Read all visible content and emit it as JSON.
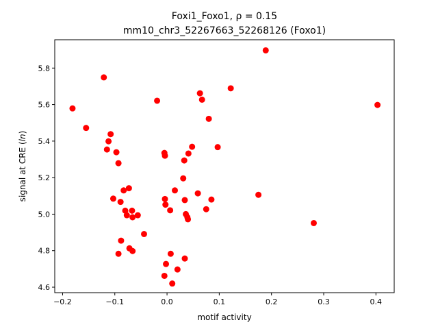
{
  "chart_data": {
    "type": "scatter",
    "title_line1": "Foxi1_Foxo1, ρ = 0.15",
    "title_line2": "mm10_chr3_52267663_52268126 (Foxo1)",
    "xlabel": "motif activity",
    "ylabel": "signal at CRE (ln)",
    "xlim": [
      -0.215,
      0.435
    ],
    "ylim": [
      4.57,
      5.955
    ],
    "xticks": [
      -0.2,
      -0.1,
      0.0,
      0.1,
      0.2,
      0.3,
      0.4
    ],
    "xtick_labels": [
      "−0.2",
      "−0.1",
      "0.0",
      "0.1",
      "0.2",
      "0.3",
      "0.4"
    ],
    "yticks": [
      4.6,
      4.8,
      5.0,
      5.2,
      5.4,
      5.6,
      5.8
    ],
    "ytick_labels": [
      "4.6",
      "4.8",
      "5.0",
      "5.2",
      "5.4",
      "5.6",
      "5.8"
    ],
    "grid": false,
    "marker_color": "#ff0000",
    "points": [
      {
        "x": -0.181,
        "y": 5.579
      },
      {
        "x": -0.155,
        "y": 5.472
      },
      {
        "x": -0.121,
        "y": 5.749
      },
      {
        "x": -0.115,
        "y": 5.354
      },
      {
        "x": -0.112,
        "y": 5.399
      },
      {
        "x": -0.108,
        "y": 5.438
      },
      {
        "x": -0.103,
        "y": 5.085
      },
      {
        "x": -0.097,
        "y": 5.339
      },
      {
        "x": -0.093,
        "y": 5.279
      },
      {
        "x": -0.093,
        "y": 4.783
      },
      {
        "x": -0.089,
        "y": 5.067
      },
      {
        "x": -0.088,
        "y": 4.855
      },
      {
        "x": -0.083,
        "y": 5.13
      },
      {
        "x": -0.08,
        "y": 5.019
      },
      {
        "x": -0.077,
        "y": 4.994
      },
      {
        "x": -0.073,
        "y": 5.142
      },
      {
        "x": -0.072,
        "y": 4.813
      },
      {
        "x": -0.067,
        "y": 5.019
      },
      {
        "x": -0.066,
        "y": 4.983
      },
      {
        "x": -0.066,
        "y": 4.798
      },
      {
        "x": -0.056,
        "y": 4.994
      },
      {
        "x": -0.044,
        "y": 4.891
      },
      {
        "x": -0.019,
        "y": 5.621
      },
      {
        "x": -0.005,
        "y": 5.335
      },
      {
        "x": -0.004,
        "y": 5.32
      },
      {
        "x": -0.004,
        "y": 5.083
      },
      {
        "x": -0.003,
        "y": 5.052
      },
      {
        "x": -0.005,
        "y": 4.662
      },
      {
        "x": -0.002,
        "y": 4.727
      },
      {
        "x": 0.006,
        "y": 5.021
      },
      {
        "x": 0.007,
        "y": 4.783
      },
      {
        "x": 0.01,
        "y": 4.62
      },
      {
        "x": 0.015,
        "y": 5.13
      },
      {
        "x": 0.02,
        "y": 4.697
      },
      {
        "x": 0.031,
        "y": 5.196
      },
      {
        "x": 0.033,
        "y": 5.294
      },
      {
        "x": 0.034,
        "y": 5.077
      },
      {
        "x": 0.034,
        "y": 4.757
      },
      {
        "x": 0.036,
        "y": 5.0
      },
      {
        "x": 0.039,
        "y": 4.983
      },
      {
        "x": 0.04,
        "y": 4.972
      },
      {
        "x": 0.041,
        "y": 5.332
      },
      {
        "x": 0.048,
        "y": 5.369
      },
      {
        "x": 0.059,
        "y": 5.114
      },
      {
        "x": 0.063,
        "y": 5.662
      },
      {
        "x": 0.067,
        "y": 5.627
      },
      {
        "x": 0.075,
        "y": 5.027
      },
      {
        "x": 0.08,
        "y": 5.522
      },
      {
        "x": 0.085,
        "y": 5.08
      },
      {
        "x": 0.097,
        "y": 5.367
      },
      {
        "x": 0.122,
        "y": 5.689
      },
      {
        "x": 0.175,
        "y": 5.106
      },
      {
        "x": 0.189,
        "y": 5.897
      },
      {
        "x": 0.281,
        "y": 4.951
      },
      {
        "x": 0.403,
        "y": 5.598
      }
    ]
  }
}
